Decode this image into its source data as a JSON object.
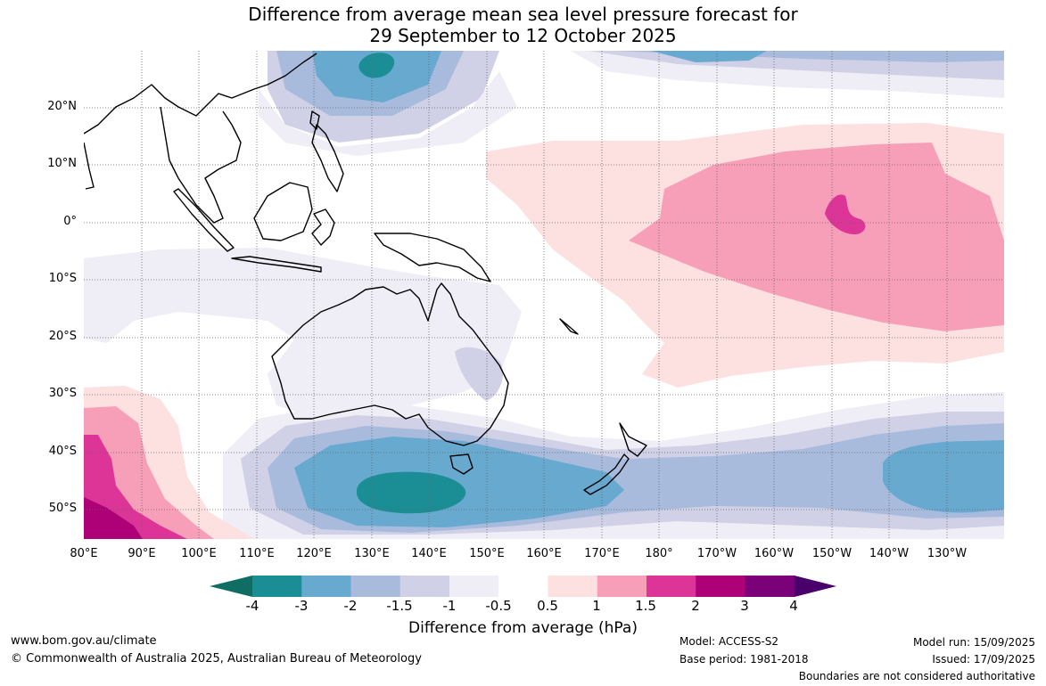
{
  "title": {
    "line1": "Difference from average mean sea level pressure forecast for",
    "line2": "29 September to 12 October 2025"
  },
  "map": {
    "lat_labels": [
      "20°N",
      "10°N",
      "0°",
      "10°S",
      "20°S",
      "30°S",
      "40°S",
      "50°S"
    ],
    "lon_labels": [
      "80°E",
      "90°E",
      "100°E",
      "110°E",
      "120°E",
      "130°E",
      "140°E",
      "150°E",
      "160°E",
      "170°E",
      "180°",
      "170°W",
      "160°W",
      "150°W",
      "140°W",
      "130°W"
    ]
  },
  "colorbar": {
    "ticks": [
      "-4",
      "-3",
      "-2",
      "-1.5",
      "-1",
      "-0.5",
      "0.5",
      "1",
      "1.5",
      "2",
      "3",
      "4"
    ],
    "colors": [
      "#0f6e63",
      "#1b8e95",
      "#68a9d0",
      "#a9bbdd",
      "#d0d1e6",
      "#efedf5",
      "#ffffff",
      "#fde0e0",
      "#f79fb8",
      "#dd3597",
      "#ae0178",
      "#7a0177",
      "#49006a"
    ],
    "title": "Difference from average (hPa)"
  },
  "footer": {
    "url": "www.bom.gov.au/climate",
    "copyright": "© Commonwealth of Australia 2025, Australian Bureau of Meteorology",
    "model": "Model: ACCESS-S2",
    "base_period": "Base period: 1981-2018",
    "model_run": "Model run: 15/09/2025",
    "issued": "Issued: 17/09/2025",
    "disclaimer": "Boundaries are not considered authoritative"
  }
}
